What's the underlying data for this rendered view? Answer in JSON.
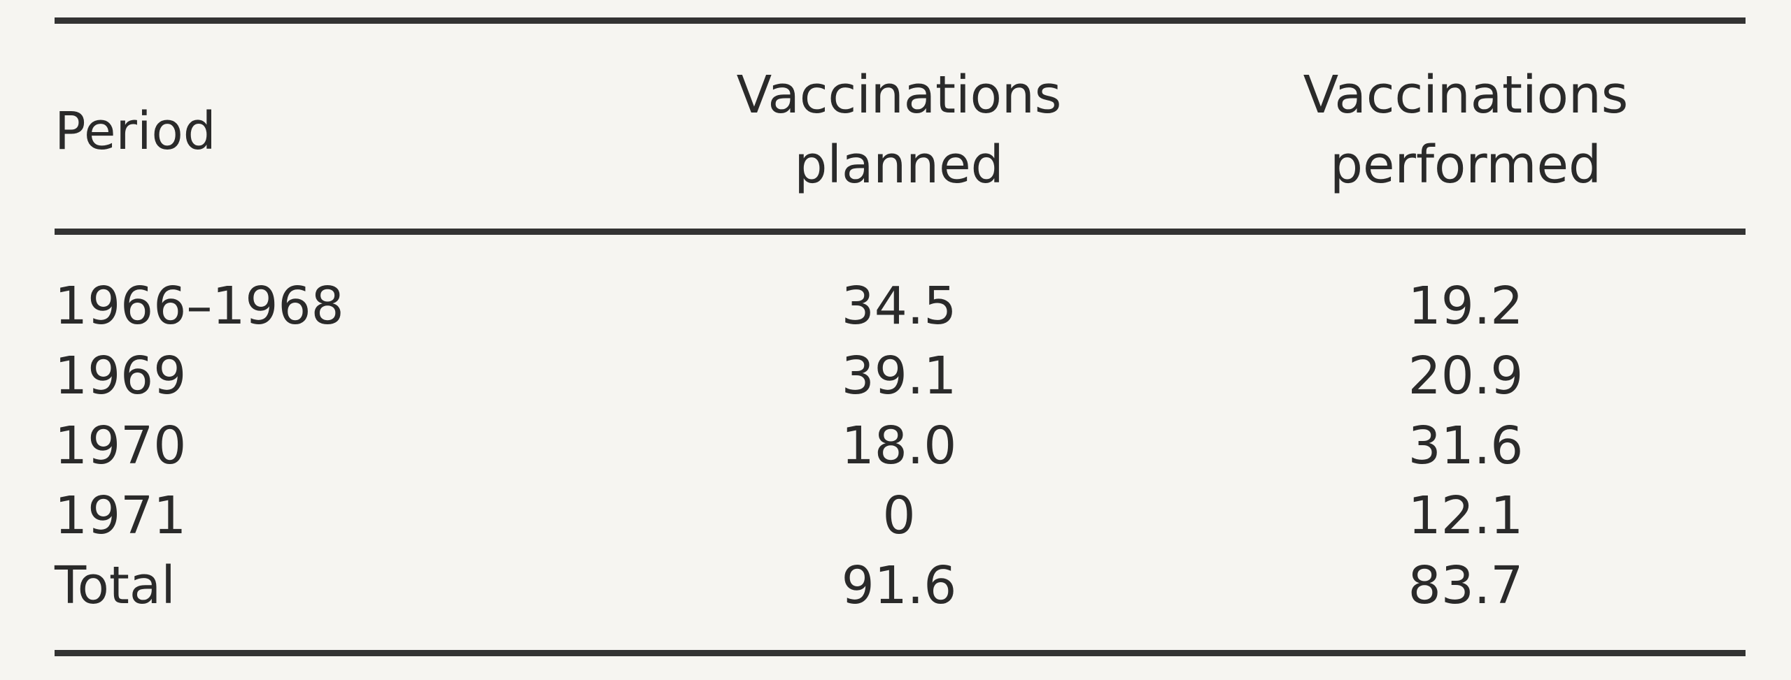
{
  "table": {
    "header": [
      "Period",
      "Vaccinations planned",
      "Vaccinations performed"
    ],
    "rows": [
      [
        "1966–1968",
        "34.5",
        "19.2"
      ],
      [
        "1969",
        "39.1",
        "20.9"
      ],
      [
        "1970",
        "18.0",
        "31.6"
      ],
      [
        "1971",
        "0",
        "12.1"
      ],
      [
        "Total",
        "91.6",
        "83.7"
      ]
    ]
  }
}
